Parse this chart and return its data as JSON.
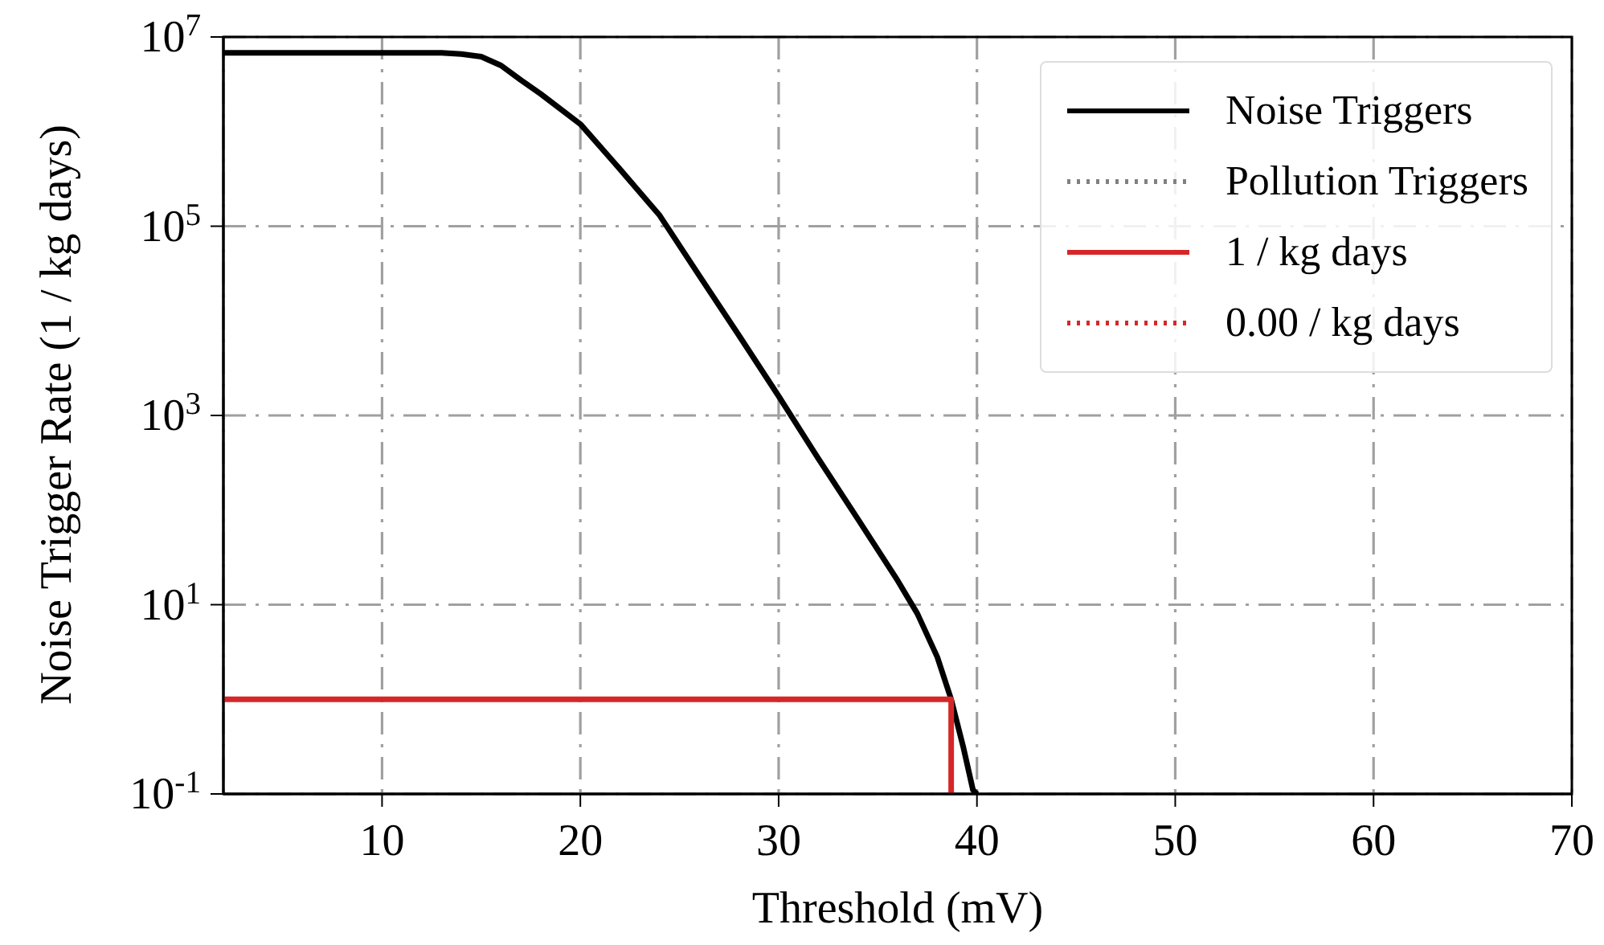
{
  "chart_data": {
    "type": "line",
    "xlabel": "Threshold (mV)",
    "ylabel": "Noise Trigger Rate (1 / kg days)",
    "xlim": [
      2,
      70
    ],
    "xticks": [
      10,
      20,
      30,
      40,
      50,
      60,
      70
    ],
    "ylim": [
      0.1,
      10000000
    ],
    "yticks": [
      {
        "value": 0.1,
        "label": "10$^{-1}$"
      },
      {
        "value": 10,
        "label": "10$^{1}$"
      },
      {
        "value": 1000,
        "label": "10$^{3}$"
      },
      {
        "value": 100000,
        "label": "10$^{5}$"
      },
      {
        "value": 10000000,
        "label": "10$^{7}$"
      }
    ],
    "log": "y",
    "grid": true,
    "legend": "top right",
    "marker": "none",
    "series": [
      {
        "name": "Noise Triggers",
        "color": "#000000",
        "line_style": "solid",
        "x": [
          2,
          10,
          13,
          14,
          15,
          16,
          17,
          18,
          20,
          22,
          24,
          26,
          28,
          30,
          32,
          34,
          36,
          37,
          38,
          38.7,
          39.3,
          39.8,
          40
        ],
        "values": [
          6800000,
          6800000,
          6800000,
          6600000,
          6200000,
          5000000,
          3500000,
          2500000,
          1200000,
          400000,
          130000,
          30000,
          7000,
          1600,
          350,
          80,
          18,
          8,
          2.8,
          1,
          0.32,
          0.11,
          0.1
        ]
      },
      {
        "name": "Pollution Triggers",
        "color": "#808080",
        "line_style": "dotted"
      },
      {
        "name": "1 / kg days",
        "color": "#d62728",
        "line_style": "solid",
        "x": [
          2,
          38.7,
          38.7
        ],
        "values": [
          1,
          1,
          0.1
        ]
      },
      {
        "name": "0.00 / kg days",
        "color": "#d62728",
        "line_style": "dotted"
      }
    ]
  }
}
